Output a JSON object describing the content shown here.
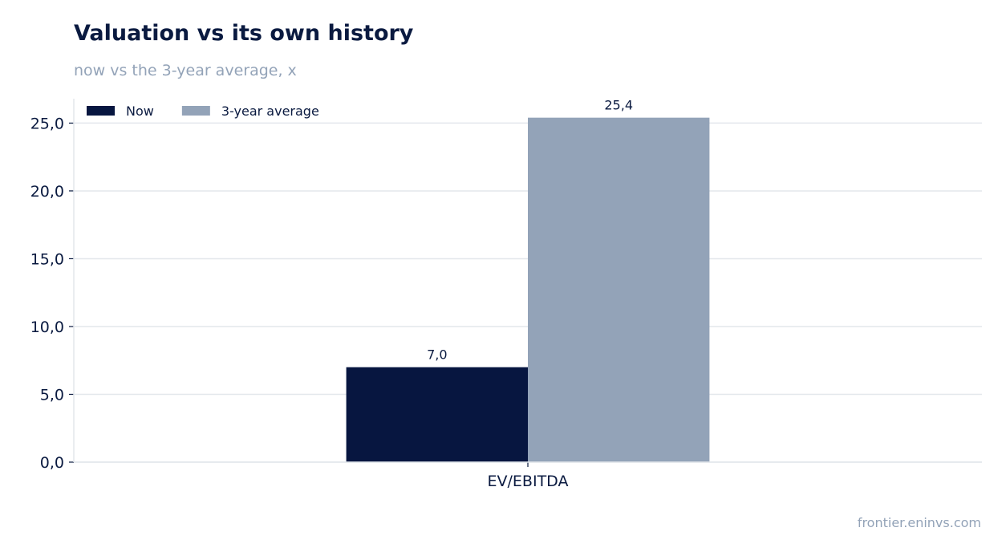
{
  "title": "Valuation vs its own history",
  "subtitle": "now vs the 3-year average, x",
  "source": "frontier.eninvs.com",
  "colors": {
    "now": "#071640",
    "avg": "#93a3b8",
    "grid": "#e3e7ec",
    "axis": "#d0d5dc",
    "text": "#0a1a40"
  },
  "chart_data": {
    "type": "bar",
    "categories": [
      "EV/EBITDA"
    ],
    "series": [
      {
        "name": "Now",
        "values": [
          7.0
        ],
        "labels": [
          "7,0"
        ]
      },
      {
        "name": "3-year average",
        "values": [
          25.4
        ],
        "labels": [
          "25,4"
        ]
      }
    ],
    "ylim": [
      0,
      26.8
    ],
    "yticks": [
      0,
      5,
      10,
      15,
      20,
      25
    ],
    "ytick_labels": [
      "0,0",
      "5,0",
      "10,0",
      "15,0",
      "20,0",
      "25,0"
    ],
    "grid": true,
    "legend_position": "top-left"
  }
}
